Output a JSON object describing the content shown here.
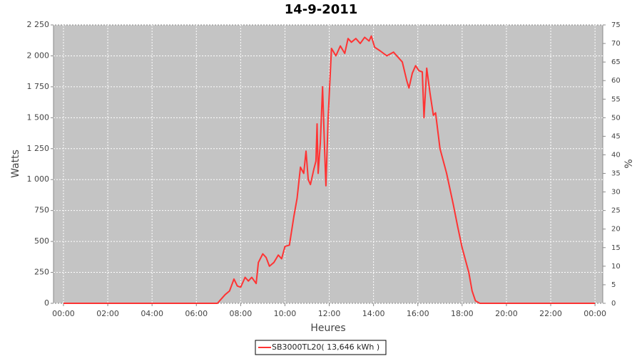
{
  "chart_data": {
    "type": "line",
    "title": "14-9-2011",
    "x_label": "Heures",
    "y_label": "Watts",
    "y2_label": "%",
    "x": [
      0,
      6.95,
      7.1,
      7.3,
      7.5,
      7.7,
      7.85,
      8.0,
      8.2,
      8.35,
      8.5,
      8.7,
      8.8,
      9.0,
      9.15,
      9.3,
      9.5,
      9.7,
      9.85,
      10.0,
      10.2,
      10.4,
      10.55,
      10.7,
      10.85,
      10.95,
      11.05,
      11.15,
      11.3,
      11.4,
      11.45,
      11.5,
      11.6,
      11.7,
      11.8,
      11.85,
      11.95,
      12.1,
      12.3,
      12.5,
      12.7,
      12.85,
      13.0,
      13.2,
      13.4,
      13.6,
      13.8,
      13.9,
      14.05,
      14.3,
      14.6,
      14.9,
      15.3,
      15.5,
      15.6,
      15.75,
      15.9,
      16.05,
      16.2,
      16.28,
      16.4,
      16.55,
      16.7,
      16.8,
      17.0,
      17.3,
      17.6,
      17.8,
      18.0,
      18.3,
      18.45,
      18.6,
      18.8,
      24
    ],
    "series": [
      {
        "name": "SB3000TL20( 13,646 kWh )",
        "color": "#ff3333",
        "values": [
          0,
          0,
          30,
          70,
          100,
          196,
          140,
          130,
          210,
          180,
          210,
          160,
          330,
          400,
          370,
          300,
          330,
          390,
          360,
          460,
          470,
          700,
          850,
          1100,
          1050,
          1230,
          1000,
          960,
          1080,
          1150,
          1450,
          1050,
          1300,
          1750,
          1200,
          950,
          1500,
          2060,
          2000,
          2080,
          2020,
          2140,
          2110,
          2140,
          2100,
          2150,
          2120,
          2160,
          2070,
          2040,
          2000,
          2030,
          1950,
          1800,
          1740,
          1860,
          1920,
          1880,
          1870,
          1500,
          1900,
          1700,
          1520,
          1540,
          1250,
          1050,
          800,
          620,
          450,
          250,
          100,
          20,
          0,
          0
        ]
      }
    ],
    "xlim": [
      -0.45,
      24.35
    ],
    "xticks": [
      {
        "value": 0,
        "label": "00:00"
      },
      {
        "value": 2,
        "label": "02:00"
      },
      {
        "value": 4,
        "label": "04:00"
      },
      {
        "value": 6,
        "label": "06:00"
      },
      {
        "value": 8,
        "label": "08:00"
      },
      {
        "value": 10,
        "label": "10:00"
      },
      {
        "value": 12,
        "label": "12:00"
      },
      {
        "value": 14,
        "label": "14:00"
      },
      {
        "value": 16,
        "label": "16:00"
      },
      {
        "value": 18,
        "label": "18:00"
      },
      {
        "value": 20,
        "label": "20:00"
      },
      {
        "value": 22,
        "label": "22:00"
      },
      {
        "value": 24,
        "label": "00:00"
      }
    ],
    "ylim": [
      0,
      2250
    ],
    "yticks": [
      0,
      250,
      500,
      750,
      {
        "value": 1000,
        "label": "1 000"
      },
      {
        "value": 1250,
        "label": "1 250"
      },
      {
        "value": 1500,
        "label": "1 500"
      },
      {
        "value": 1750,
        "label": "1 750"
      },
      {
        "value": 2000,
        "label": "2 000"
      },
      {
        "value": 2250,
        "label": "2 250"
      }
    ],
    "y2lim": [
      0,
      75
    ],
    "y2ticks": [
      0,
      5,
      10,
      15,
      20,
      25,
      30,
      35,
      40,
      45,
      50,
      55,
      60,
      65,
      70,
      75
    ],
    "grid": true,
    "legend": "bottom"
  }
}
